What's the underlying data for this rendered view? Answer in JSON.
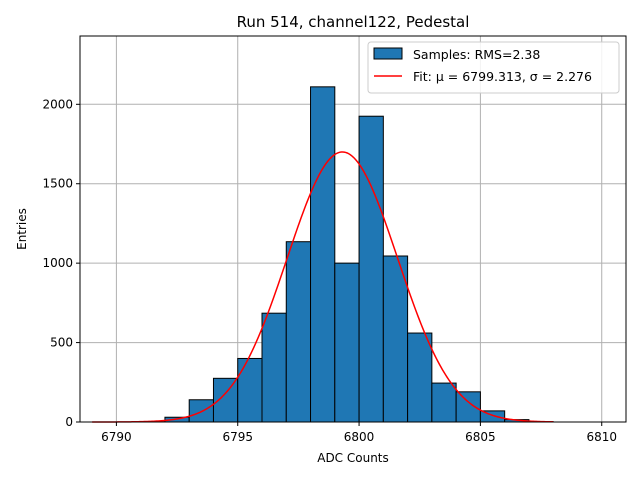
{
  "chart_data": {
    "type": "bar",
    "title": "Run 514, channel122, Pedestal",
    "xlabel": "ADC Counts",
    "ylabel": "Entries",
    "xlim": [
      6788.5,
      6811
    ],
    "ylim": [
      0,
      2430
    ],
    "xticks": [
      6790,
      6795,
      6800,
      6805,
      6810
    ],
    "yticks": [
      0,
      500,
      1000,
      1500,
      2000
    ],
    "grid": true,
    "legend_position": "top-right",
    "bins": {
      "edges": [
        6789,
        6790,
        6791,
        6792,
        6793,
        6794,
        6795,
        6796,
        6797,
        6798,
        6799,
        6800,
        6801,
        6802,
        6803,
        6804,
        6805,
        6806,
        6807,
        6808
      ],
      "values": [
        0,
        0,
        2,
        30,
        140,
        275,
        400,
        685,
        1135,
        2110,
        1000,
        1925,
        1045,
        560,
        245,
        190,
        70,
        15,
        2
      ]
    },
    "fit": {
      "mu": 6799.313,
      "sigma": 2.276,
      "amplitude": 1700,
      "x_range": [
        6789,
        6808
      ]
    },
    "legend": [
      {
        "label": "Samples: RMS=2.38",
        "kind": "patch"
      },
      {
        "label": "Fit: μ = 6799.313, σ = 2.276",
        "kind": "line"
      }
    ],
    "colors": {
      "bar_fill": "#1f77b4",
      "bar_edge": "#000000",
      "fit_line": "#ff0000",
      "grid": "#b0b0b0"
    }
  }
}
